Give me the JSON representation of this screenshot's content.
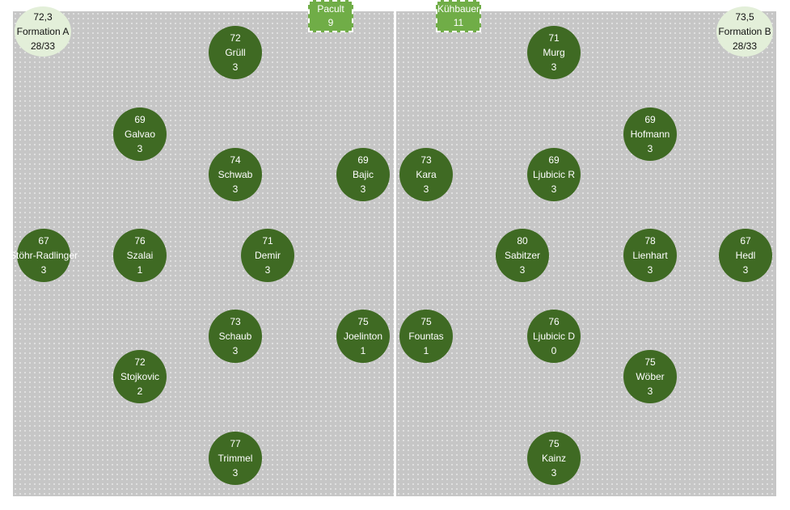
{
  "teams": {
    "a": {
      "rating": "72,3",
      "formation_label": "Formation A",
      "count": "28/33",
      "coach": {
        "name": "Pacult",
        "number": "9"
      },
      "players": [
        {
          "rating": "72",
          "name": "Grüll",
          "count": "3"
        },
        {
          "rating": "69",
          "name": "Galvao",
          "count": "3"
        },
        {
          "rating": "74",
          "name": "Schwab",
          "count": "3"
        },
        {
          "rating": "69",
          "name": "Bajic",
          "count": "3"
        },
        {
          "rating": "67",
          "name": "Stöhr-Radlinger",
          "count": "3"
        },
        {
          "rating": "76",
          "name": "Szalai",
          "count": "1"
        },
        {
          "rating": "71",
          "name": "Demir",
          "count": "3"
        },
        {
          "rating": "73",
          "name": "Schaub",
          "count": "3"
        },
        {
          "rating": "75",
          "name": "Joelinton",
          "count": "1"
        },
        {
          "rating": "72",
          "name": "Stojkovic",
          "count": "2"
        },
        {
          "rating": "77",
          "name": "Trimmel",
          "count": "3"
        }
      ]
    },
    "b": {
      "rating": "73,5",
      "formation_label": "Formation B",
      "count": "28/33",
      "coach": {
        "name": "Kühbauer",
        "number": "11"
      },
      "players": [
        {
          "rating": "71",
          "name": "Murg",
          "count": "3"
        },
        {
          "rating": "69",
          "name": "Hofmann",
          "count": "3"
        },
        {
          "rating": "73",
          "name": "Kara",
          "count": "3"
        },
        {
          "rating": "69",
          "name": "Ljubicic R",
          "count": "3"
        },
        {
          "rating": "80",
          "name": "Sabitzer",
          "count": "3"
        },
        {
          "rating": "78",
          "name": "Lienhart",
          "count": "3"
        },
        {
          "rating": "67",
          "name": "Hedl",
          "count": "3"
        },
        {
          "rating": "75",
          "name": "Fountas",
          "count": "1"
        },
        {
          "rating": "76",
          "name": "Ljubicic D",
          "count": "0"
        },
        {
          "rating": "75",
          "name": "Wöber",
          "count": "3"
        },
        {
          "rating": "75",
          "name": "Kainz",
          "count": "3"
        }
      ]
    }
  }
}
